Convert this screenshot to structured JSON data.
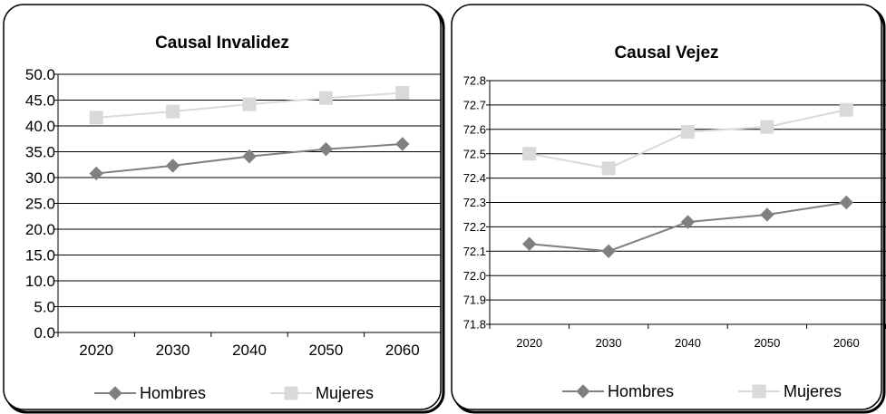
{
  "chart_data": [
    {
      "type": "line",
      "title": "Causal Invalidez",
      "categories": [
        "2020",
        "2030",
        "2040",
        "2050",
        "2060"
      ],
      "ylim": [
        0,
        50
      ],
      "ytick_step": 5,
      "ytick_labels": [
        "0.0",
        "5.0",
        "10.0",
        "15.0",
        "20.0",
        "25.0",
        "30.0",
        "35.0",
        "40.0",
        "45.0",
        "50.0"
      ],
      "grid": true,
      "legend_position": "bottom",
      "series": [
        {
          "name": "Hombres",
          "color": "#808080",
          "marker": "diamond",
          "values": [
            30.8,
            32.3,
            34.1,
            35.5,
            36.5
          ]
        },
        {
          "name": "Mujeres",
          "color": "#d9d9d9",
          "marker": "square",
          "values": [
            41.6,
            42.8,
            44.2,
            45.4,
            46.4
          ]
        }
      ]
    },
    {
      "type": "line",
      "title": "Causal Vejez",
      "categories": [
        "2020",
        "2030",
        "2040",
        "2050",
        "2060"
      ],
      "ylim": [
        71.8,
        72.8
      ],
      "ytick_step": 0.1,
      "ytick_labels": [
        "71.8",
        "71.9",
        "72.0",
        "72.1",
        "72.2",
        "72.3",
        "72.4",
        "72.5",
        "72.6",
        "72.7",
        "72.8"
      ],
      "grid": true,
      "legend_position": "bottom",
      "series": [
        {
          "name": "Hombres",
          "color": "#808080",
          "marker": "diamond",
          "values": [
            72.13,
            72.1,
            72.22,
            72.25,
            72.3
          ]
        },
        {
          "name": "Mujeres",
          "color": "#d9d9d9",
          "marker": "square",
          "values": [
            72.5,
            72.44,
            72.59,
            72.61,
            72.68
          ]
        }
      ]
    }
  ]
}
